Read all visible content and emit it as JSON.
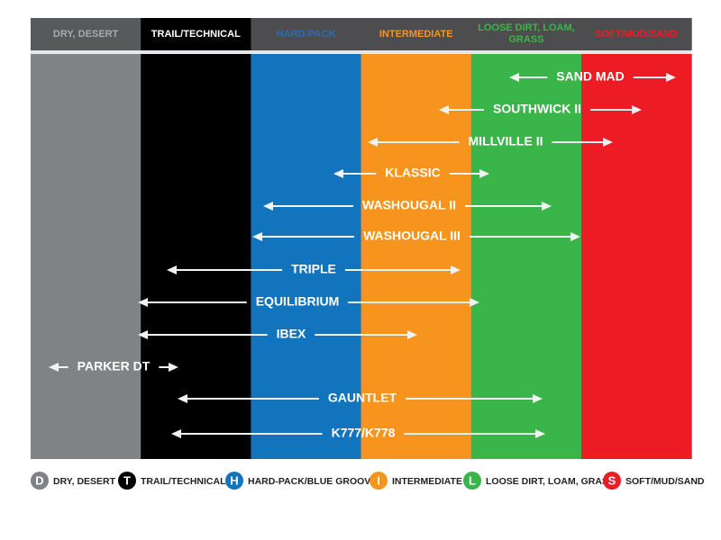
{
  "columns": [
    {
      "header": "DRY, DESERT",
      "letter": "D",
      "legend": "DRY, DESERT"
    },
    {
      "header": "TRAIL/TECHNICAL",
      "letter": "T",
      "legend": "TRAIL/TECHNICAL"
    },
    {
      "header": "HARD-PACK",
      "letter": "H",
      "legend": "HARD-PACK/BLUE GROOVE"
    },
    {
      "header": "INTERMEDIATE",
      "letter": "I",
      "legend": "INTERMEDIATE"
    },
    {
      "header": "LOOSE DIRT, LOAM, GRASS",
      "letter": "L",
      "legend": "LOOSE DIRT, LOAM, GRASS"
    },
    {
      "header": "SOFT/MUD/SAND",
      "letter": "S",
      "legend": "SOFT/MUD/SAND"
    }
  ],
  "tires": [
    {
      "name": "SAND MAD"
    },
    {
      "name": "SOUTHWICK II"
    },
    {
      "name": "MILLVILLE II"
    },
    {
      "name": "KLASSIC"
    },
    {
      "name": "WASHOUGAL II"
    },
    {
      "name": "WASHOUGAL III"
    },
    {
      "name": "TRIPLE"
    },
    {
      "name": "EQUILIBRIUM"
    },
    {
      "name": "IBEX"
    },
    {
      "name": "PARKER DT"
    },
    {
      "name": "GAUNTLET"
    },
    {
      "name": "K777/K778"
    }
  ]
}
